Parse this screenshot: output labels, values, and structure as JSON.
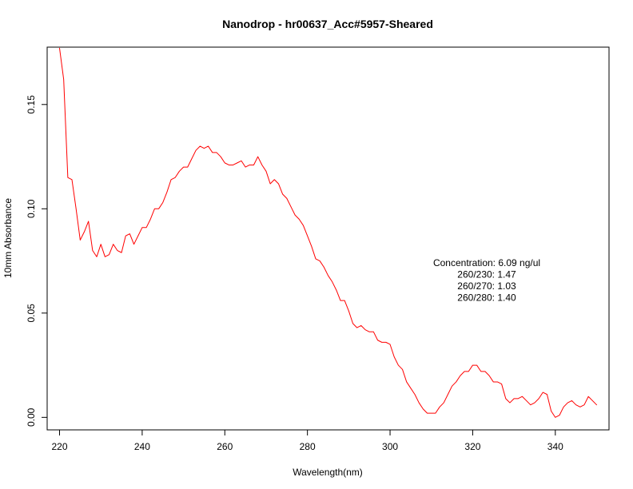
{
  "chart_data": {
    "type": "line",
    "title": "Nanodrop - hr00637_Acc#5957-Sheared",
    "xlabel": "Wavelength(nm)",
    "ylabel": "10mm Absorbance",
    "xlim": [
      217,
      353
    ],
    "ylim": [
      -0.006,
      0.1775
    ],
    "xticks": [
      220,
      240,
      260,
      280,
      300,
      320,
      340
    ],
    "xtick_labels": [
      "220",
      "240",
      "260",
      "280",
      "300",
      "320",
      "340"
    ],
    "yticks": [
      0.0,
      0.05,
      0.1,
      0.15
    ],
    "ytick_labels": [
      "0.00",
      "0.05",
      "0.10",
      "0.15"
    ],
    "grid": false,
    "legend": "none",
    "annotation": {
      "lines": [
        "Concentration: 6.09 ng/ul",
        "260/230: 1.47",
        "260/270: 1.03",
        "260/280: 1.40"
      ]
    },
    "series": [
      {
        "color": "#ff0000",
        "x": [
          220,
          221,
          222,
          223,
          224,
          225,
          226,
          227,
          228,
          229,
          230,
          231,
          232,
          233,
          234,
          235,
          236,
          237,
          238,
          239,
          240,
          241,
          242,
          243,
          244,
          245,
          246,
          247,
          248,
          249,
          250,
          251,
          252,
          253,
          254,
          255,
          256,
          257,
          258,
          259,
          260,
          261,
          262,
          263,
          264,
          265,
          266,
          267,
          268,
          269,
          270,
          271,
          272,
          273,
          274,
          275,
          276,
          277,
          278,
          279,
          280,
          281,
          282,
          283,
          284,
          285,
          286,
          287,
          288,
          289,
          290,
          291,
          292,
          293,
          294,
          295,
          296,
          297,
          298,
          299,
          300,
          301,
          302,
          303,
          304,
          305,
          306,
          307,
          308,
          309,
          310,
          311,
          312,
          313,
          314,
          315,
          316,
          317,
          318,
          319,
          320,
          321,
          322,
          323,
          324,
          325,
          326,
          327,
          328,
          329,
          330,
          331,
          332,
          333,
          334,
          335,
          336,
          337,
          338,
          339,
          340,
          341,
          342,
          343,
          344,
          345,
          346,
          347,
          348,
          349,
          350
        ],
        "y": [
          0.177,
          0.162,
          0.115,
          0.114,
          0.1,
          0.085,
          0.089,
          0.094,
          0.08,
          0.077,
          0.083,
          0.077,
          0.078,
          0.083,
          0.08,
          0.079,
          0.087,
          0.088,
          0.083,
          0.087,
          0.091,
          0.091,
          0.095,
          0.1,
          0.1,
          0.103,
          0.108,
          0.114,
          0.115,
          0.118,
          0.12,
          0.12,
          0.124,
          0.128,
          0.13,
          0.129,
          0.13,
          0.127,
          0.127,
          0.125,
          0.122,
          0.121,
          0.121,
          0.122,
          0.123,
          0.12,
          0.121,
          0.121,
          0.125,
          0.121,
          0.118,
          0.112,
          0.114,
          0.112,
          0.107,
          0.105,
          0.101,
          0.097,
          0.095,
          0.092,
          0.087,
          0.082,
          0.076,
          0.075,
          0.072,
          0.068,
          0.065,
          0.061,
          0.056,
          0.056,
          0.051,
          0.045,
          0.043,
          0.044,
          0.042,
          0.041,
          0.041,
          0.037,
          0.036,
          0.036,
          0.035,
          0.029,
          0.025,
          0.023,
          0.017,
          0.014,
          0.011,
          0.007,
          0.004,
          0.002,
          0.002,
          0.002,
          0.005,
          0.007,
          0.011,
          0.015,
          0.017,
          0.02,
          0.022,
          0.022,
          0.025,
          0.025,
          0.022,
          0.022,
          0.02,
          0.017,
          0.017,
          0.016,
          0.009,
          0.007,
          0.009,
          0.009,
          0.01,
          0.008,
          0.006,
          0.007,
          0.009,
          0.012,
          0.011,
          0.003,
          0.0,
          0.001,
          0.005,
          0.007,
          0.008,
          0.006,
          0.005,
          0.006,
          0.01,
          0.008,
          0.006
        ]
      }
    ]
  }
}
